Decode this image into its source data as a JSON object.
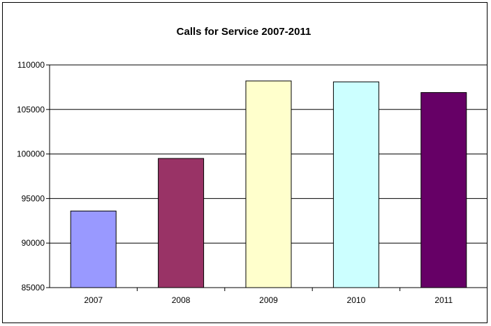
{
  "chart_data": {
    "type": "bar",
    "title": "Calls for Service 2007-2011",
    "categories": [
      "2007",
      "2008",
      "2009",
      "2010",
      "2011"
    ],
    "values": [
      93600,
      99500,
      108200,
      108100,
      106900
    ],
    "bar_colors": [
      "#9999ff",
      "#993366",
      "#ffffcc",
      "#ccffff",
      "#660066"
    ],
    "ylim": [
      85000,
      110000
    ],
    "yticks": [
      85000,
      90000,
      95000,
      100000,
      105000,
      110000
    ],
    "ytick_labels": [
      "85000",
      "90000",
      "95000",
      "100000",
      "105000",
      "110000"
    ],
    "grid": true,
    "legend": "none"
  }
}
